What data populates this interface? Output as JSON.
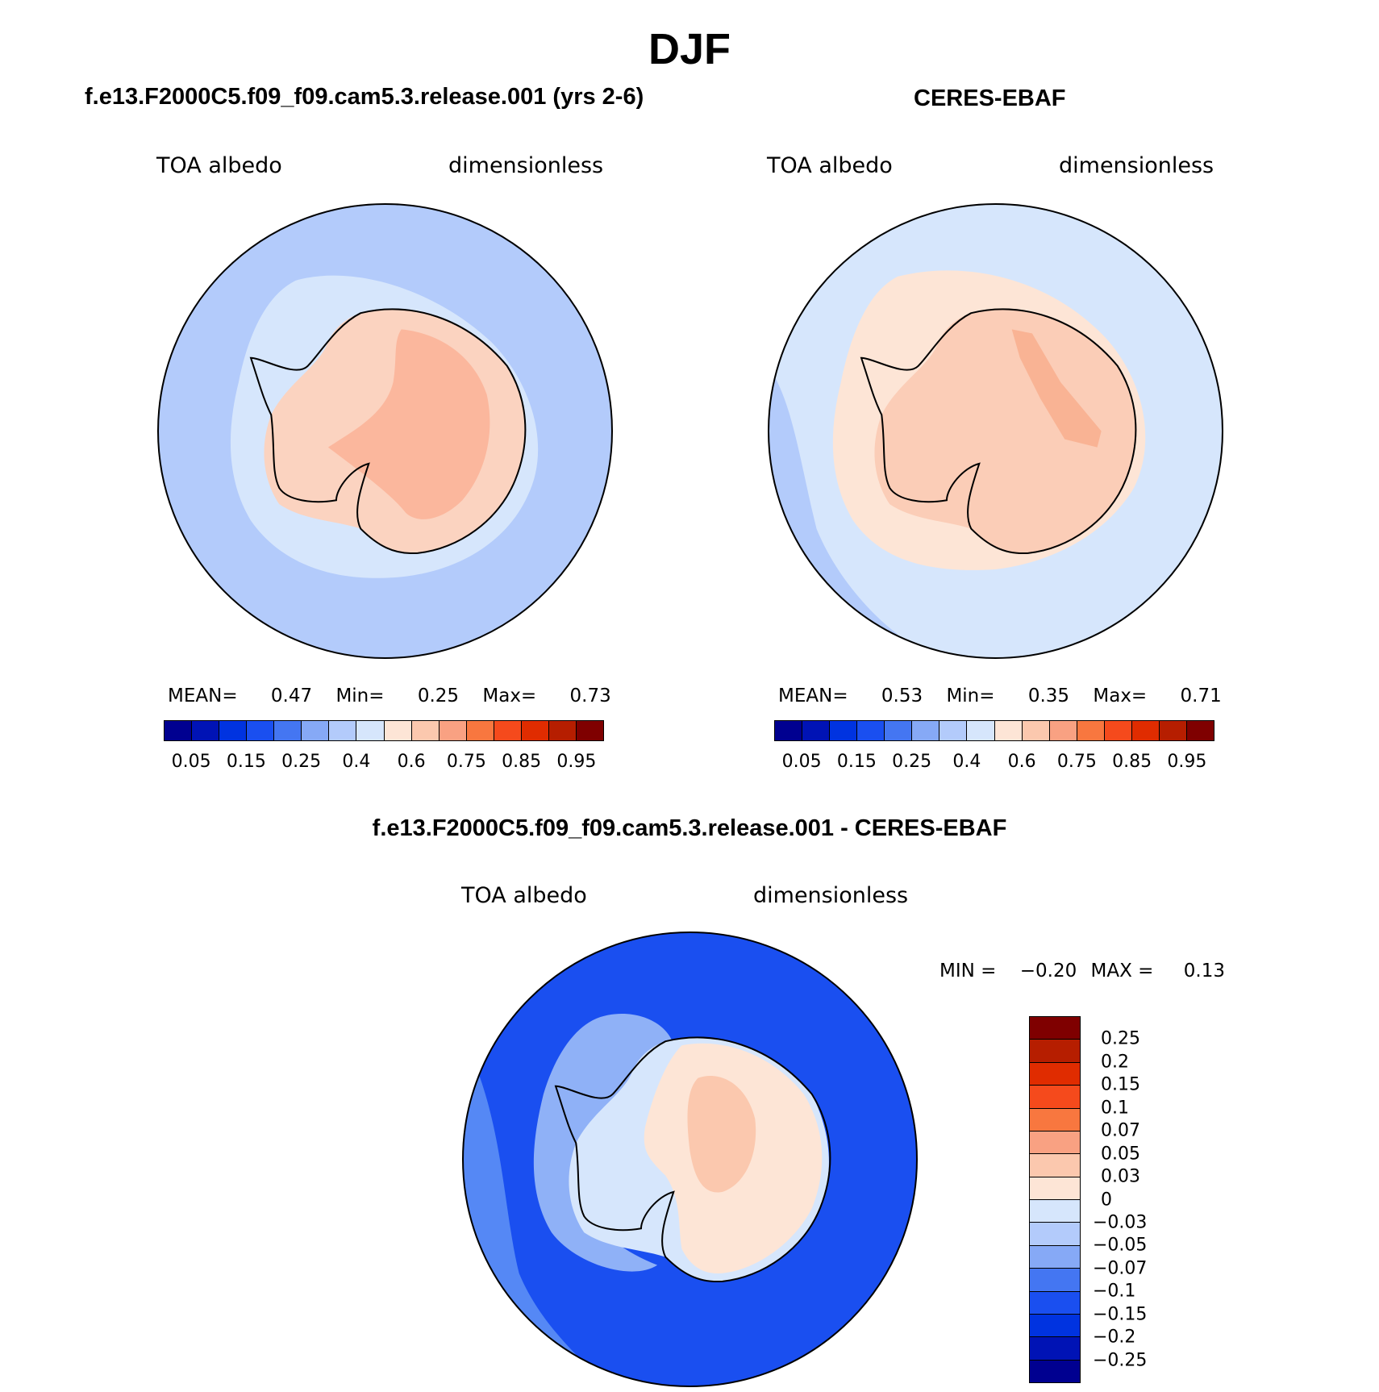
{
  "figure": {
    "title": "DJF"
  },
  "panels": [
    {
      "id": "model",
      "title": "f.e13.F2000C5.f09_f09.cam5.3.release.001 (yrs 2-6)",
      "variable": "TOA albedo",
      "units": "dimensionless",
      "stats": {
        "mean_label": "MEAN=",
        "mean": "0.47",
        "min_label": "Min=",
        "min": "0.25",
        "max_label": "Max=",
        "max": "0.73"
      },
      "colors": {
        "ocean": "#b3cbfb",
        "ring": "#d6e6fc",
        "shelf": "#fbd3c0",
        "interior": "#fbb79d"
      }
    },
    {
      "id": "obs",
      "title": "CERES-EBAF",
      "variable": "TOA albedo",
      "units": "dimensionless",
      "stats": {
        "mean_label": "MEAN=",
        "mean": "0.53",
        "min_label": "Min=",
        "min": "0.35",
        "max_label": "Max=",
        "max": "0.71"
      },
      "colors": {
        "ocean": "#d6e6fc",
        "ring": "#fde5d6",
        "shelf": "#fbcdb7",
        "interior": "#f9b394"
      }
    },
    {
      "id": "diff",
      "title": "f.e13.F2000C5.f09_f09.cam5.3.release.001 - CERES-EBAF",
      "variable": "TOA albedo",
      "units": "dimensionless",
      "stats": {
        "min_label": "MIN =",
        "min": "−0.20",
        "max_label": "MAX =",
        "max": "0.13"
      },
      "colors": {
        "ocean": "#1a4ff0",
        "outer": "#5588f5",
        "ring": "#8fb1f7",
        "coast": "#d6e6fc",
        "land": "#fde5d6",
        "warm": "#fbc8ae"
      }
    }
  ],
  "albedo_colorbar": {
    "colors": [
      "#000090",
      "#0013b5",
      "#0033e0",
      "#1a4ff0",
      "#4476f2",
      "#86a9f6",
      "#b3cbfb",
      "#d6e6fc",
      "#fde5d6",
      "#fbc8ae",
      "#f9a182",
      "#f8773f",
      "#f54a1c",
      "#e02c00",
      "#b61e00",
      "#7f0000"
    ],
    "labels": [
      "0.05",
      "0.15",
      "0.25",
      "0.4",
      "0.6",
      "0.75",
      "0.85",
      "0.95"
    ]
  },
  "diff_colorbar": {
    "colors": [
      "#7f0000",
      "#b61e00",
      "#e02c00",
      "#f54a1c",
      "#f8773f",
      "#f9a182",
      "#fbc8ae",
      "#fde5d6",
      "#d6e6fc",
      "#b3cbfb",
      "#86a9f6",
      "#4476f2",
      "#1a4ff0",
      "#0033e0",
      "#0013b5",
      "#000090"
    ],
    "labels": [
      "0.25",
      "0.2",
      "0.15",
      "0.1",
      "0.07",
      "0.05",
      "0.03",
      "0",
      "−0.03",
      "−0.05",
      "−0.07",
      "−0.1",
      "−0.15",
      "−0.2",
      "−0.25"
    ]
  }
}
